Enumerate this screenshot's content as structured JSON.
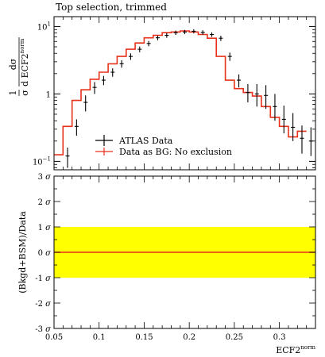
{
  "chart_data": [
    {
      "type": "line",
      "panel": "main",
      "title": "Top selection, trimmed",
      "ylabel_numerator": "dσ",
      "ylabel_prefix": "1",
      "ylabel_denominator": "σ",
      "ylabel_variable": "d ECF2",
      "ylabel_variable_sup": "norm",
      "yscale": "log",
      "ylim": [
        0.075,
        14
      ],
      "xlim": [
        0.05,
        0.34
      ],
      "yticks": [
        {
          "value": 0.1,
          "base": "10",
          "sup": "−1"
        },
        {
          "value": 1,
          "base": "1",
          "sup": ""
        },
        {
          "value": 10,
          "base": "10",
          "sup": "1"
        }
      ],
      "legend_position": "lower-left",
      "bin_edges": [
        0.05,
        0.06,
        0.07,
        0.08,
        0.09,
        0.1,
        0.11,
        0.12,
        0.13,
        0.14,
        0.15,
        0.16,
        0.17,
        0.18,
        0.19,
        0.2,
        0.21,
        0.22,
        0.23,
        0.24,
        0.25,
        0.26,
        0.27,
        0.28,
        0.29,
        0.3,
        0.31,
        0.32,
        0.33,
        0.34
      ],
      "series": [
        {
          "name": "ATLAS Data",
          "color": "#000000",
          "style": "points-with-errors",
          "x": [
            0.065,
            0.075,
            0.085,
            0.095,
            0.105,
            0.115,
            0.125,
            0.135,
            0.145,
            0.155,
            0.165,
            0.175,
            0.185,
            0.195,
            0.205,
            0.215,
            0.225,
            0.235,
            0.245,
            0.255,
            0.265,
            0.275,
            0.285,
            0.295,
            0.305,
            0.315,
            0.325,
            0.335
          ],
          "y": [
            0.12,
            0.33,
            0.75,
            1.25,
            1.6,
            2.1,
            2.8,
            3.6,
            4.6,
            5.6,
            6.8,
            7.4,
            8.1,
            8.3,
            8.5,
            8.2,
            7.6,
            6.7,
            3.6,
            1.6,
            1.05,
            1.0,
            0.95,
            0.65,
            0.42,
            0.32,
            0.22,
            0.2
          ],
          "err_up": [
            0.04,
            0.09,
            0.2,
            0.25,
            0.25,
            0.3,
            0.35,
            0.4,
            0.45,
            0.5,
            0.55,
            0.6,
            0.6,
            0.6,
            0.6,
            0.6,
            0.6,
            0.6,
            0.5,
            0.35,
            0.35,
            0.4,
            0.4,
            0.35,
            0.25,
            0.2,
            0.12,
            0.12
          ],
          "err_down": [
            0.04,
            0.09,
            0.2,
            0.25,
            0.25,
            0.3,
            0.35,
            0.4,
            0.45,
            0.5,
            0.55,
            0.6,
            0.6,
            0.6,
            0.6,
            0.6,
            0.6,
            0.6,
            0.5,
            0.35,
            0.3,
            0.35,
            0.35,
            0.25,
            0.16,
            0.12,
            0.09,
            0.08
          ]
        },
        {
          "name": "Data as BG: No exclusion",
          "color": "#e8311a",
          "style": "step",
          "y": [
            0.125,
            0.33,
            0.8,
            1.15,
            1.65,
            2.1,
            2.8,
            3.6,
            4.6,
            5.7,
            6.8,
            7.4,
            8.1,
            8.3,
            8.6,
            8.3,
            7.6,
            6.7,
            3.6,
            1.6,
            1.2,
            1.05,
            0.93,
            0.65,
            0.45,
            0.33,
            0.23,
            0.28
          ]
        }
      ]
    },
    {
      "type": "line",
      "panel": "ratio",
      "ylabel": "(Bkgd+BSM)/Data",
      "xlabel_base": "ECF2",
      "xlabel_sup": "norm",
      "xlim": [
        0.05,
        0.34
      ],
      "ylim": [
        -3,
        3
      ],
      "xticks": [
        0.05,
        0.1,
        0.15,
        0.2,
        0.25,
        0.3
      ],
      "xtick_labels": [
        "0.05",
        "0.1",
        "0.15",
        "0.2",
        "0.25",
        "0.3"
      ],
      "yticks": [
        3,
        2,
        1,
        0,
        -1,
        -2,
        -3
      ],
      "ytick_labels": [
        "3",
        "2",
        "1",
        "0",
        "-1",
        "-2",
        "-3"
      ],
      "ytick_unit": "σ",
      "band": {
        "from": -1,
        "to": 1,
        "color": "#ffff00"
      },
      "series": [
        {
          "name": "",
          "color": "#e8311a",
          "x": [
            0.05,
            0.34
          ],
          "values": [
            0,
            0
          ]
        }
      ]
    }
  ]
}
